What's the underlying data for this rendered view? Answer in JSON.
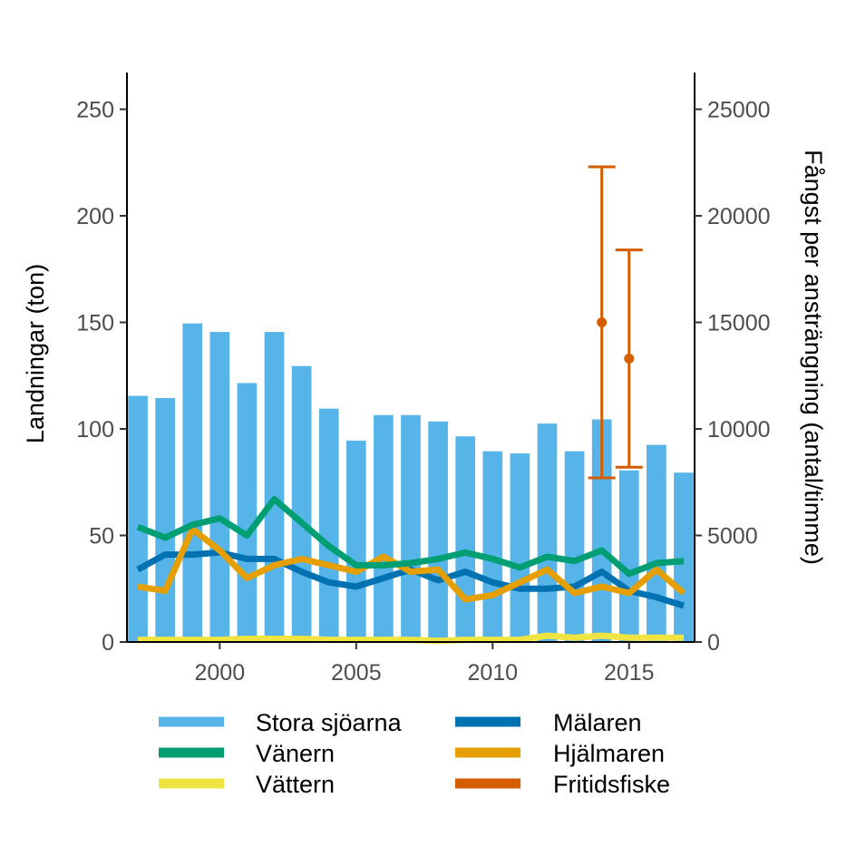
{
  "chart_data": {
    "type": "bar",
    "x": [
      1997,
      1998,
      1999,
      2000,
      2001,
      2002,
      2003,
      2004,
      2005,
      2006,
      2007,
      2008,
      2009,
      2010,
      2011,
      2012,
      2013,
      2014,
      2015,
      2016,
      2017
    ],
    "xlim": [
      1996.6,
      2017.4
    ],
    "xticks": [
      2000,
      2005,
      2010,
      2015
    ],
    "ylabel": "Landningar (ton)",
    "ylim": [
      0,
      265
    ],
    "yticks": [
      0,
      50,
      100,
      150,
      200,
      250
    ],
    "y2label": "Fångst per ansträngning (antal/timme)",
    "y2lim": [
      0,
      26500
    ],
    "y2ticks": [
      0,
      5000,
      10000,
      15000,
      20000,
      25000
    ],
    "grid": false,
    "legend_position": "bottom",
    "series": [
      {
        "name": "Stora sjöarna",
        "type": "bar",
        "color": "#56B4E9",
        "axis": "left",
        "values": [
          115.5,
          114.5,
          149.5,
          145.5,
          121.5,
          145.5,
          129.5,
          109.5,
          94.5,
          106.5,
          106.5,
          103.5,
          96.5,
          89.5,
          88.5,
          102.5,
          89.5,
          104.5,
          80.5,
          92.5,
          79.5
        ]
      },
      {
        "name": "Mälaren",
        "type": "line",
        "color": "#0072B2",
        "axis": "left",
        "values": [
          34,
          41,
          41,
          42,
          39,
          39,
          33,
          28,
          26,
          30,
          34,
          29,
          33,
          28,
          25,
          25,
          26,
          33,
          24,
          21,
          17
        ]
      },
      {
        "name": "Vänern",
        "type": "line",
        "color": "#009E73",
        "axis": "left",
        "values": [
          54,
          49,
          55,
          58,
          50,
          67,
          56,
          45,
          36,
          36,
          37,
          39,
          42,
          39,
          35,
          40,
          38,
          43,
          32,
          37,
          38
        ]
      },
      {
        "name": "Hjälmaren",
        "type": "line",
        "color": "#E69F00",
        "axis": "left",
        "values": [
          26,
          24,
          53,
          43,
          30,
          36,
          39,
          36,
          33,
          40,
          33,
          34,
          20,
          22,
          28,
          34,
          23,
          26,
          23,
          34,
          23
        ]
      },
      {
        "name": "Vättern",
        "type": "line",
        "color": "#F0E442",
        "axis": "left",
        "values": [
          1,
          1,
          1,
          1,
          1.5,
          1.5,
          1.5,
          1,
          1,
          1,
          1,
          0.5,
          1,
          1,
          1,
          3,
          2,
          3,
          2,
          2,
          2
        ]
      },
      {
        "name": "Fritidsfiske",
        "type": "errorbar",
        "color": "#D55E00",
        "axis": "right",
        "points": [
          {
            "x": 2014,
            "y": 15000,
            "ymin": 7700,
            "ymax": 22300
          },
          {
            "x": 2015,
            "y": 13300,
            "ymin": 8200,
            "ymax": 18400
          }
        ]
      }
    ]
  }
}
